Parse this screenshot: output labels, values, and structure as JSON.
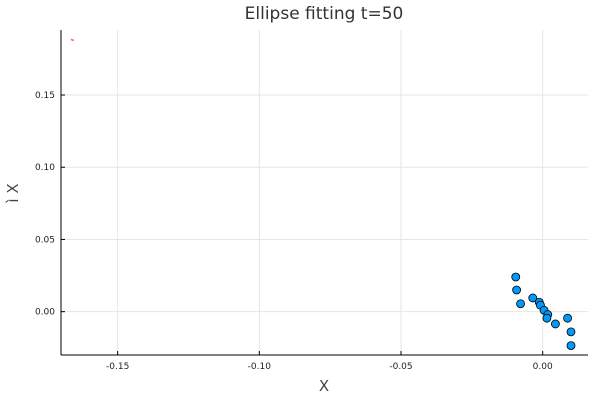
{
  "chart_data": {
    "type": "scatter",
    "title": "Ellipse fitting t=50",
    "xlabel": "X",
    "ylabel": "ì X",
    "xlim": [
      -0.17,
      0.016
    ],
    "ylim": [
      -0.03,
      0.195
    ],
    "x_ticks": [
      {
        "value": -0.15,
        "label": "-0.15"
      },
      {
        "value": -0.1,
        "label": "-0.10"
      },
      {
        "value": -0.05,
        "label": "-0.05"
      },
      {
        "value": 0.0,
        "label": "0.00"
      }
    ],
    "y_ticks": [
      {
        "value": 0.0,
        "label": "0.00"
      },
      {
        "value": 0.05,
        "label": "0.05"
      },
      {
        "value": 0.1,
        "label": "0.10"
      },
      {
        "value": 0.15,
        "label": "0.15"
      }
    ],
    "grid": true,
    "legend": "none",
    "series": [
      {
        "type": "scatter",
        "color": "#009AF9",
        "points": [
          {
            "x": -0.0095,
            "y": 0.024
          },
          {
            "x": -0.0092,
            "y": 0.015
          },
          {
            "x": -0.0078,
            "y": 0.0055
          },
          {
            "x": -0.0035,
            "y": 0.0095
          },
          {
            "x": -0.0012,
            "y": 0.0065
          },
          {
            "x": -0.0008,
            "y": 0.0045
          },
          {
            "x": 0.0005,
            "y": 0.001
          },
          {
            "x": 0.0018,
            "y": -0.002
          },
          {
            "x": 0.0015,
            "y": -0.0045
          },
          {
            "x": 0.0045,
            "y": -0.0085
          },
          {
            "x": 0.0088,
            "y": -0.0045
          },
          {
            "x": 0.01,
            "y": -0.014
          },
          {
            "x": 0.01,
            "y": -0.0235
          }
        ]
      },
      {
        "type": "line",
        "color": "#E26F46",
        "points": [
          {
            "x": -0.1665,
            "y": 0.1885
          },
          {
            "x": -0.1655,
            "y": 0.1878
          }
        ]
      }
    ],
    "colors": {
      "axis": "#000000",
      "grid": "#e6e6e6",
      "marker_edge": "#000000"
    }
  }
}
